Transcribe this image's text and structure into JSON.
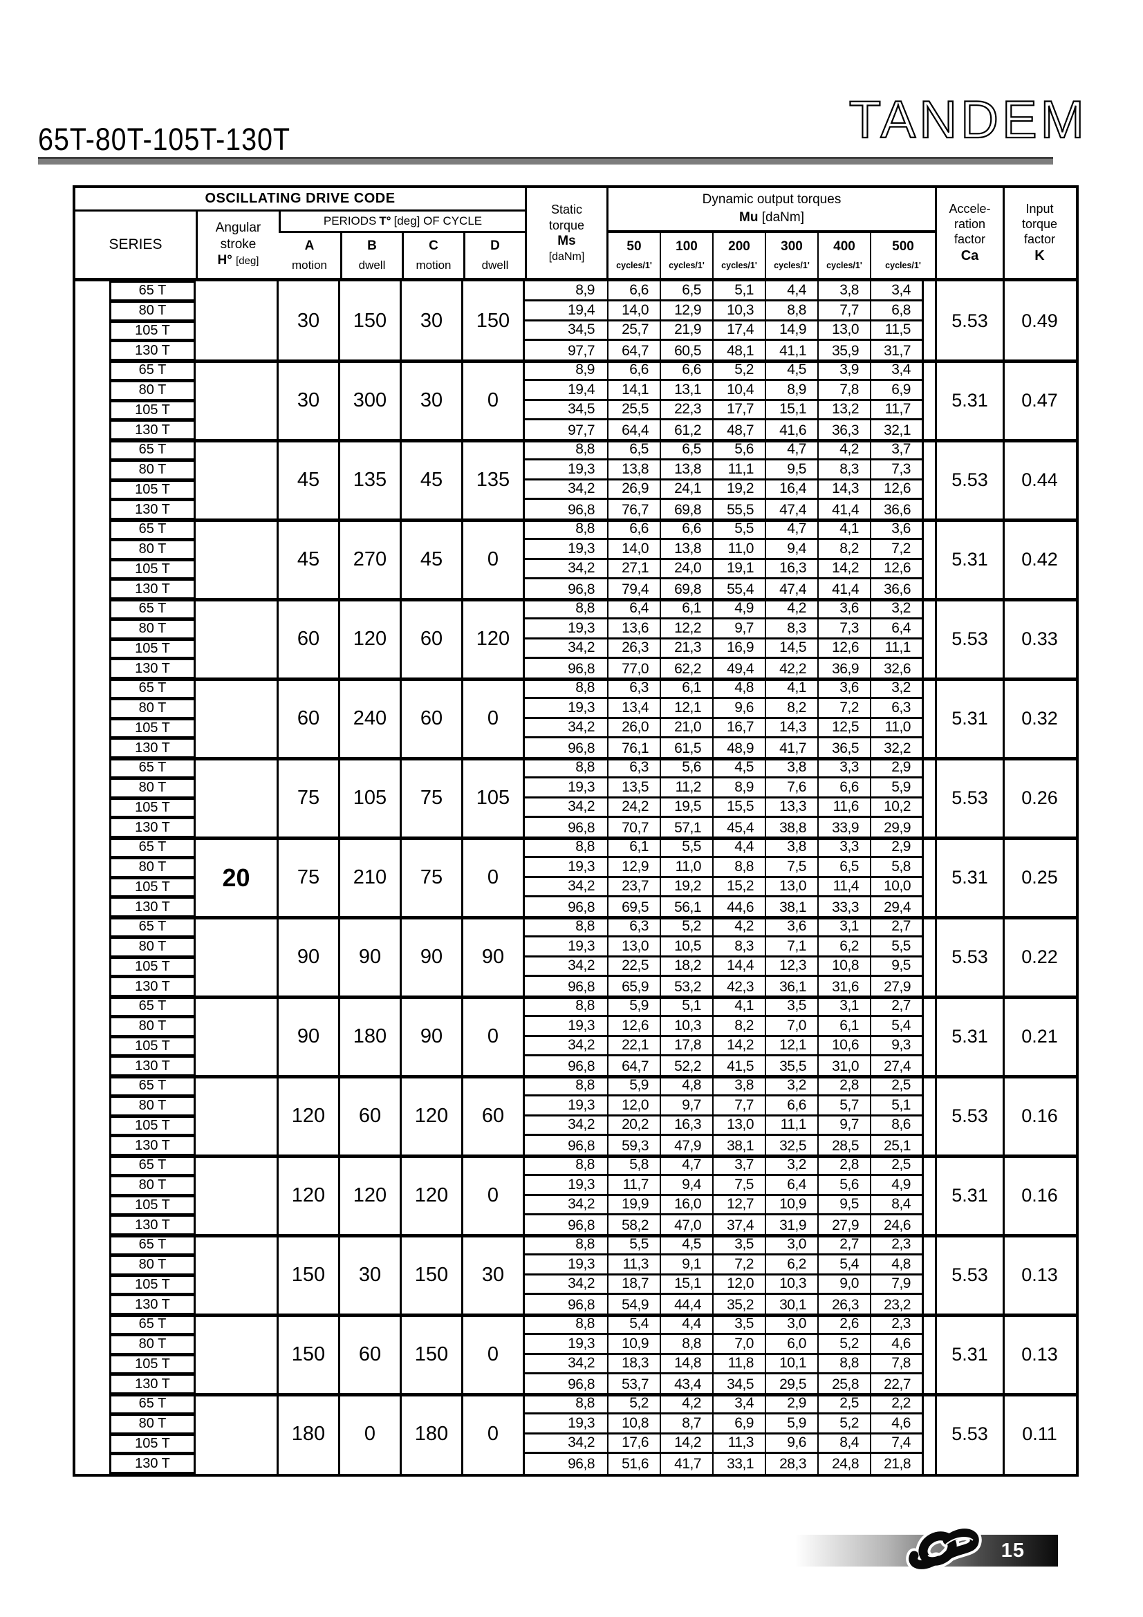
{
  "page": {
    "series_title": "65T-80T-105T-130T",
    "brand": "TANDEM"
  },
  "table": {
    "header": {
      "drive_code": "OSCILLATING DRIVE CODE",
      "series": "SERIES",
      "angular": [
        "Angular",
        "stroke"
      ],
      "angular_sym": "H°",
      "angular_unit": "[deg]",
      "periods_label": "PERIODS",
      "periods_sym": "T°",
      "periods_rest": "[deg] OF CYCLE",
      "period_cols": [
        {
          "letter": "A",
          "kind": "motion"
        },
        {
          "letter": "B",
          "kind": "dwell"
        },
        {
          "letter": "C",
          "kind": "motion"
        },
        {
          "letter": "D",
          "kind": "dwell"
        }
      ],
      "static_lines": [
        "Static",
        "torque"
      ],
      "static_sym": "Ms",
      "static_unit": "[daNm]",
      "dynamic_title": "Dynamic output torques",
      "mu_sym": "Mu",
      "mu_unit": "[daNm]",
      "cycle_cols": [
        "50",
        "100",
        "200",
        "300",
        "400",
        "500"
      ],
      "cycles_unit": "cycles/1'",
      "accel_lines": [
        "Accele-",
        "ration",
        "factor"
      ],
      "accel_sym": "Ca",
      "input_lines": [
        "Input",
        "torque",
        "factor"
      ],
      "input_sym": "K"
    },
    "series_labels": [
      "65 T",
      "80 T",
      "105 T",
      "130 T"
    ],
    "angular_stroke_value": "20",
    "groups": [
      {
        "a": "30",
        "b": "150",
        "c": "30",
        "d": "150",
        "ca": "5.53",
        "k": "0.49",
        "rows": [
          [
            "8,9",
            "6,6",
            "6,5",
            "5,1",
            "4,4",
            "3,8",
            "3,4"
          ],
          [
            "19,4",
            "14,0",
            "12,9",
            "10,3",
            "8,8",
            "7,7",
            "6,8"
          ],
          [
            "34,5",
            "25,7",
            "21,9",
            "17,4",
            "14,9",
            "13,0",
            "11,5"
          ],
          [
            "97,7",
            "64,7",
            "60,5",
            "48,1",
            "41,1",
            "35,9",
            "31,7"
          ]
        ]
      },
      {
        "a": "30",
        "b": "300",
        "c": "30",
        "d": "0",
        "ca": "5.31",
        "k": "0.47",
        "rows": [
          [
            "8,9",
            "6,6",
            "6,6",
            "5,2",
            "4,5",
            "3,9",
            "3,4"
          ],
          [
            "19,4",
            "14,1",
            "13,1",
            "10,4",
            "8,9",
            "7,8",
            "6,9"
          ],
          [
            "34,5",
            "25,5",
            "22,3",
            "17,7",
            "15,1",
            "13,2",
            "11,7"
          ],
          [
            "97,7",
            "64,4",
            "61,2",
            "48,7",
            "41,6",
            "36,3",
            "32,1"
          ]
        ]
      },
      {
        "a": "45",
        "b": "135",
        "c": "45",
        "d": "135",
        "ca": "5.53",
        "k": "0.44",
        "rows": [
          [
            "8,8",
            "6,5",
            "6,5",
            "5,6",
            "4,7",
            "4,2",
            "3,7"
          ],
          [
            "19,3",
            "13,8",
            "13,8",
            "11,1",
            "9,5",
            "8,3",
            "7,3"
          ],
          [
            "34,2",
            "26,9",
            "24,1",
            "19,2",
            "16,4",
            "14,3",
            "12,6"
          ],
          [
            "96,8",
            "76,7",
            "69,8",
            "55,5",
            "47,4",
            "41,4",
            "36,6"
          ]
        ]
      },
      {
        "a": "45",
        "b": "270",
        "c": "45",
        "d": "0",
        "ca": "5.31",
        "k": "0.42",
        "rows": [
          [
            "8,8",
            "6,6",
            "6,6",
            "5,5",
            "4,7",
            "4,1",
            "3,6"
          ],
          [
            "19,3",
            "14,0",
            "13,8",
            "11,0",
            "9,4",
            "8,2",
            "7,2"
          ],
          [
            "34,2",
            "27,1",
            "24,0",
            "19,1",
            "16,3",
            "14,2",
            "12,6"
          ],
          [
            "96,8",
            "79,4",
            "69,8",
            "55,4",
            "47,4",
            "41,4",
            "36,6"
          ]
        ]
      },
      {
        "a": "60",
        "b": "120",
        "c": "60",
        "d": "120",
        "ca": "5.53",
        "k": "0.33",
        "rows": [
          [
            "8,8",
            "6,4",
            "6,1",
            "4,9",
            "4,2",
            "3,6",
            "3,2"
          ],
          [
            "19,3",
            "13,6",
            "12,2",
            "9,7",
            "8,3",
            "7,3",
            "6,4"
          ],
          [
            "34,2",
            "26,3",
            "21,3",
            "16,9",
            "14,5",
            "12,6",
            "11,1"
          ],
          [
            "96,8",
            "77,0",
            "62,2",
            "49,4",
            "42,2",
            "36,9",
            "32,6"
          ]
        ]
      },
      {
        "a": "60",
        "b": "240",
        "c": "60",
        "d": "0",
        "ca": "5.31",
        "k": "0.32",
        "rows": [
          [
            "8,8",
            "6,3",
            "6,1",
            "4,8",
            "4,1",
            "3,6",
            "3,2"
          ],
          [
            "19,3",
            "13,4",
            "12,1",
            "9,6",
            "8,2",
            "7,2",
            "6,3"
          ],
          [
            "34,2",
            "26,0",
            "21,0",
            "16,7",
            "14,3",
            "12,5",
            "11,0"
          ],
          [
            "96,8",
            "76,1",
            "61,5",
            "48,9",
            "41,7",
            "36,5",
            "32,2"
          ]
        ]
      },
      {
        "a": "75",
        "b": "105",
        "c": "75",
        "d": "105",
        "ca": "5.53",
        "k": "0.26",
        "rows": [
          [
            "8,8",
            "6,3",
            "5,6",
            "4,5",
            "3,8",
            "3,3",
            "2,9"
          ],
          [
            "19,3",
            "13,5",
            "11,2",
            "8,9",
            "7,6",
            "6,6",
            "5,9"
          ],
          [
            "34,2",
            "24,2",
            "19,5",
            "15,5",
            "13,3",
            "11,6",
            "10,2"
          ],
          [
            "96,8",
            "70,7",
            "57,1",
            "45,4",
            "38,8",
            "33,9",
            "29,9"
          ]
        ]
      },
      {
        "a": "75",
        "b": "210",
        "c": "75",
        "d": "0",
        "ca": "5.31",
        "k": "0.25",
        "rows": [
          [
            "8,8",
            "6,1",
            "5,5",
            "4,4",
            "3,8",
            "3,3",
            "2,9"
          ],
          [
            "19,3",
            "12,9",
            "11,0",
            "8,8",
            "7,5",
            "6,5",
            "5,8"
          ],
          [
            "34,2",
            "23,7",
            "19,2",
            "15,2",
            "13,0",
            "11,4",
            "10,0"
          ],
          [
            "96,8",
            "69,5",
            "56,1",
            "44,6",
            "38,1",
            "33,3",
            "29,4"
          ]
        ]
      },
      {
        "a": "90",
        "b": "90",
        "c": "90",
        "d": "90",
        "ca": "5.53",
        "k": "0.22",
        "rows": [
          [
            "8,8",
            "6,3",
            "5,2",
            "4,2",
            "3,6",
            "3,1",
            "2,7"
          ],
          [
            "19,3",
            "13,0",
            "10,5",
            "8,3",
            "7,1",
            "6,2",
            "5,5"
          ],
          [
            "34,2",
            "22,5",
            "18,2",
            "14,4",
            "12,3",
            "10,8",
            "9,5"
          ],
          [
            "96,8",
            "65,9",
            "53,2",
            "42,3",
            "36,1",
            "31,6",
            "27,9"
          ]
        ]
      },
      {
        "a": "90",
        "b": "180",
        "c": "90",
        "d": "0",
        "ca": "5.31",
        "k": "0.21",
        "rows": [
          [
            "8,8",
            "5,9",
            "5,1",
            "4,1",
            "3,5",
            "3,1",
            "2,7"
          ],
          [
            "19,3",
            "12,6",
            "10,3",
            "8,2",
            "7,0",
            "6,1",
            "5,4"
          ],
          [
            "34,2",
            "22,1",
            "17,8",
            "14,2",
            "12,1",
            "10,6",
            "9,3"
          ],
          [
            "96,8",
            "64,7",
            "52,2",
            "41,5",
            "35,5",
            "31,0",
            "27,4"
          ]
        ]
      },
      {
        "a": "120",
        "b": "60",
        "c": "120",
        "d": "60",
        "ca": "5.53",
        "k": "0.16",
        "rows": [
          [
            "8,8",
            "5,9",
            "4,8",
            "3,8",
            "3,2",
            "2,8",
            "2,5"
          ],
          [
            "19,3",
            "12,0",
            "9,7",
            "7,7",
            "6,6",
            "5,7",
            "5,1"
          ],
          [
            "34,2",
            "20,2",
            "16,3",
            "13,0",
            "11,1",
            "9,7",
            "8,6"
          ],
          [
            "96,8",
            "59,3",
            "47,9",
            "38,1",
            "32,5",
            "28,5",
            "25,1"
          ]
        ]
      },
      {
        "a": "120",
        "b": "120",
        "c": "120",
        "d": "0",
        "ca": "5.31",
        "k": "0.16",
        "rows": [
          [
            "8,8",
            "5,8",
            "4,7",
            "3,7",
            "3,2",
            "2,8",
            "2,5"
          ],
          [
            "19,3",
            "11,7",
            "9,4",
            "7,5",
            "6,4",
            "5,6",
            "4,9"
          ],
          [
            "34,2",
            "19,9",
            "16,0",
            "12,7",
            "10,9",
            "9,5",
            "8,4"
          ],
          [
            "96,8",
            "58,2",
            "47,0",
            "37,4",
            "31,9",
            "27,9",
            "24,6"
          ]
        ]
      },
      {
        "a": "150",
        "b": "30",
        "c": "150",
        "d": "30",
        "ca": "5.53",
        "k": "0.13",
        "rows": [
          [
            "8,8",
            "5,5",
            "4,5",
            "3,5",
            "3,0",
            "2,7",
            "2,3"
          ],
          [
            "19,3",
            "11,3",
            "9,1",
            "7,2",
            "6,2",
            "5,4",
            "4,8"
          ],
          [
            "34,2",
            "18,7",
            "15,1",
            "12,0",
            "10,3",
            "9,0",
            "7,9"
          ],
          [
            "96,8",
            "54,9",
            "44,4",
            "35,2",
            "30,1",
            "26,3",
            "23,2"
          ]
        ]
      },
      {
        "a": "150",
        "b": "60",
        "c": "150",
        "d": "0",
        "ca": "5.31",
        "k": "0.13",
        "rows": [
          [
            "8,8",
            "5,4",
            "4,4",
            "3,5",
            "3,0",
            "2,6",
            "2,3"
          ],
          [
            "19,3",
            "10,9",
            "8,8",
            "7,0",
            "6,0",
            "5,2",
            "4,6"
          ],
          [
            "34,2",
            "18,3",
            "14,8",
            "11,8",
            "10,1",
            "8,8",
            "7,8"
          ],
          [
            "96,8",
            "53,7",
            "43,4",
            "34,5",
            "29,5",
            "25,8",
            "22,7"
          ]
        ]
      },
      {
        "a": "180",
        "b": "0",
        "c": "180",
        "d": "0",
        "ca": "5.53",
        "k": "0.11",
        "rows": [
          [
            "8,8",
            "5,2",
            "4,2",
            "3,4",
            "2,9",
            "2,5",
            "2,2"
          ],
          [
            "19,3",
            "10,8",
            "8,7",
            "6,9",
            "5,9",
            "5,2",
            "4,6"
          ],
          [
            "34,2",
            "17,6",
            "14,2",
            "11,3",
            "9,6",
            "8,4",
            "7,4"
          ],
          [
            "96,8",
            "51,6",
            "41,7",
            "33,1",
            "28,3",
            "24,8",
            "21,8"
          ]
        ]
      }
    ]
  },
  "footer": {
    "page_number": "15",
    "logo": "knot-logo"
  }
}
